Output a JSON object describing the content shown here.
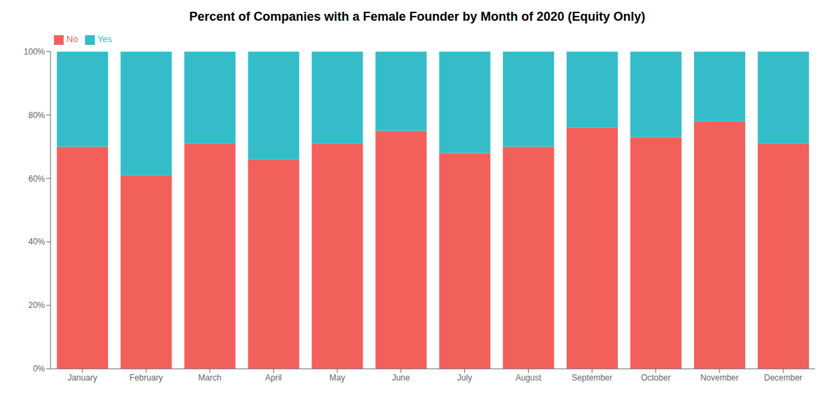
{
  "chart_data": {
    "type": "bar",
    "stacked": true,
    "title": "Percent of Companies with a Female Founder by Month of 2020 (Equity Only)",
    "categories": [
      "January",
      "February",
      "March",
      "April",
      "May",
      "June",
      "July",
      "August",
      "September",
      "October",
      "November",
      "December"
    ],
    "series": [
      {
        "name": "No",
        "color": "#F2605C",
        "values": [
          70,
          61,
          71,
          66,
          71,
          75,
          68,
          70,
          76,
          73,
          78,
          71
        ]
      },
      {
        "name": "Yes",
        "color": "#34BDC8",
        "values": [
          30,
          39,
          29,
          34,
          29,
          25,
          32,
          30,
          24,
          27,
          22,
          29
        ]
      }
    ],
    "ylim": [
      0,
      100
    ],
    "yticks": [
      {
        "value": 0,
        "label": "0%"
      },
      {
        "value": 20,
        "label": "20%"
      },
      {
        "value": 40,
        "label": "40%"
      },
      {
        "value": 60,
        "label": "60%"
      },
      {
        "value": 80,
        "label": "80%"
      },
      {
        "value": 100,
        "label": "100%"
      }
    ],
    "grid": false,
    "legend": "upper left"
  }
}
